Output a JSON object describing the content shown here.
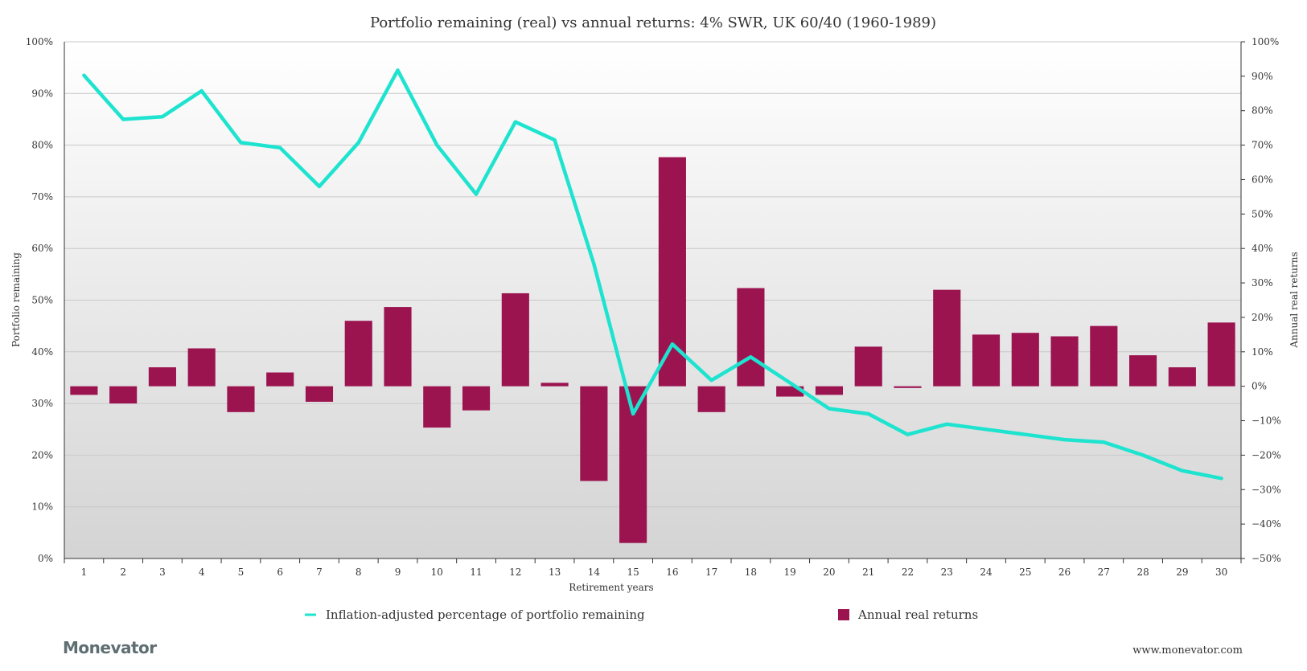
{
  "chart_data": {
    "type": "bar+line",
    "title": "Portfolio remaining (real) vs annual returns: 4% SWR, UK 60/40 (1960-1989)",
    "xlabel": "Retirement years",
    "ylabel_left": "Portfolio remaining",
    "ylabel_right": "Annual real returns",
    "categories": [
      "1",
      "2",
      "3",
      "4",
      "5",
      "6",
      "7",
      "8",
      "9",
      "10",
      "11",
      "12",
      "13",
      "14",
      "15",
      "16",
      "17",
      "18",
      "19",
      "20",
      "21",
      "22",
      "23",
      "24",
      "25",
      "26",
      "27",
      "28",
      "29",
      "30"
    ],
    "ylim_left": [
      0,
      100
    ],
    "ylim_right": [
      -50,
      100
    ],
    "yticks_left": [
      "0%",
      "10%",
      "20%",
      "30%",
      "40%",
      "50%",
      "60%",
      "70%",
      "80%",
      "90%",
      "100%"
    ],
    "yticks_right": [
      "−50%",
      "−40%",
      "−30%",
      "−20%",
      "−10%",
      "0%",
      "10%",
      "20%",
      "30%",
      "40%",
      "50%",
      "60%",
      "70%",
      "80%",
      "90%",
      "100%"
    ],
    "grid": true,
    "legend_position": "bottom",
    "series": [
      {
        "name": "Inflation-adjusted percentage of portfolio remaining",
        "kind": "line",
        "axis": "left",
        "color": "#1de3cf",
        "values": [
          93.5,
          85.0,
          85.5,
          90.5,
          80.5,
          79.5,
          72.0,
          80.5,
          94.5,
          80.0,
          70.5,
          84.5,
          81.0,
          57.0,
          28.0,
          41.5,
          34.5,
          39.0,
          34.0,
          29.0,
          28.0,
          24.0,
          26.0,
          25.0,
          24.0,
          23.0,
          22.5,
          20.0,
          17.0,
          15.5
        ]
      },
      {
        "name": "Annual real returns",
        "kind": "bar",
        "axis": "right",
        "color": "#9b1450",
        "values": [
          -2.5,
          -5.0,
          5.5,
          11.0,
          -7.5,
          4.0,
          -4.5,
          19.0,
          23.0,
          -12.0,
          -7.0,
          27.0,
          1.0,
          -27.5,
          -45.5,
          66.5,
          -7.5,
          28.5,
          -3.0,
          -2.5,
          11.5,
          -0.5,
          28.0,
          15.0,
          15.5,
          14.5,
          17.5,
          9.0,
          5.5,
          18.5
        ]
      }
    ]
  },
  "footer": {
    "brand": "Monevator",
    "url": "www.monevator.com"
  },
  "colors": {
    "line": "#1de3cf",
    "bar": "#9b1450"
  }
}
